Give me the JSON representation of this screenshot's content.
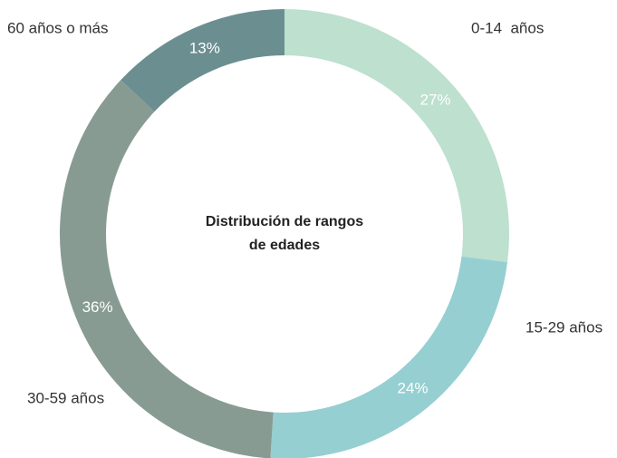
{
  "chart_data": {
    "type": "donut",
    "title": "Distribución de rangos de edades",
    "categories": [
      "0-14  años",
      "15-29 años",
      "30-59 años",
      "60 años o más"
    ],
    "values": [
      27,
      24,
      36,
      13
    ],
    "value_labels": [
      "27%",
      "24%",
      "36%",
      "13%"
    ],
    "colors": [
      "#bde0cf",
      "#95cfd1",
      "#879b92",
      "#6b8f91"
    ]
  }
}
